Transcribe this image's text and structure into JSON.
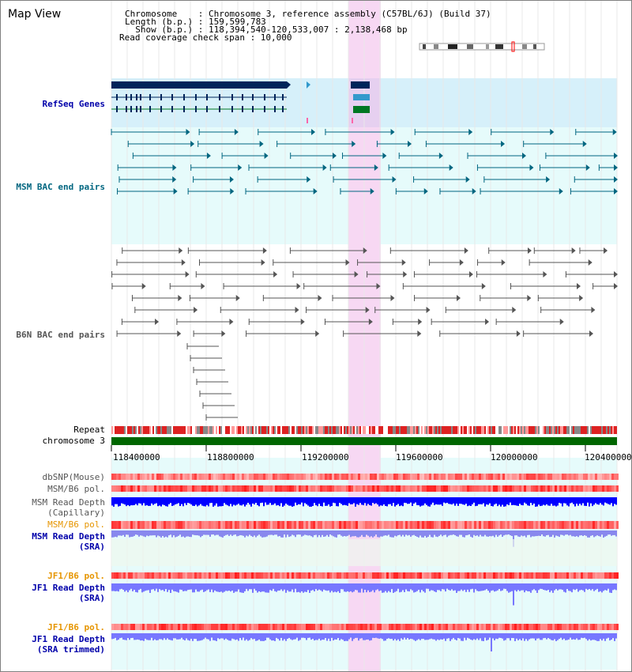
{
  "view": {
    "title": "Map View",
    "header_lines": [
      "Chromosome    : Chromosome 3, reference assembly (C57BL/6J) (Build 37)",
      "Length (b.p.) : 159,599,783",
      "  Show (b.p.) : 118,394,540-120,533,007 : 2,138,468 bp",
      "Read coverage check span : 10,000"
    ]
  },
  "tracks": {
    "refseq": {
      "label": "RefSeq Genes",
      "color": "#0000aa"
    },
    "msm_bac": {
      "label": "MSM BAC end pairs",
      "color": "#006680"
    },
    "b6n_bac": {
      "label": "B6N BAC end pairs",
      "color": "#555555"
    },
    "repeat": {
      "label": "Repeat"
    },
    "chromosome": {
      "label": "chromosome 3"
    }
  },
  "axis": {
    "ticks": [
      "118400000",
      "118800000",
      "119200000",
      "119600000",
      "120000000",
      "120400000"
    ]
  },
  "lower_tracks": {
    "dbsnp": "dbSNP(Mouse)",
    "msm_b6_pol_1": "MSM/B6 pol.",
    "msm_read_depth_cap_1": "MSM Read Depth",
    "msm_read_depth_cap_2": "(Capillary)",
    "msm_b6_pol_2": "MSM/B6 pol.",
    "msm_read_depth_sra_1": "MSM Read Depth",
    "msm_read_depth_sra_2": "(SRA)",
    "jf1_b6_pol_1": "JF1/B6 pol.",
    "jf1_read_depth_1": "JF1 Read Depth",
    "jf1_read_depth_2": "(SRA)",
    "jf1_b6_pol_2": "JF1/B6 pol.",
    "jf1_read_depth_trim_1": "JF1 Read Depth",
    "jf1_read_depth_trim_2": "(SRA trimmed)"
  },
  "colors": {
    "highlight": "#f7d8f3",
    "refseq_bg": "#d6f0fa",
    "bac_bg": "#e6fbfb",
    "chromosome": "#006600",
    "gene_dark": "#00245a",
    "gene_mid": "#3399cc",
    "gene_green": "#007722",
    "depth_blue": "#0000ff",
    "depth_light": "#7777ff",
    "pol_red": "#ee3333",
    "label_orange": "#e69500"
  }
}
